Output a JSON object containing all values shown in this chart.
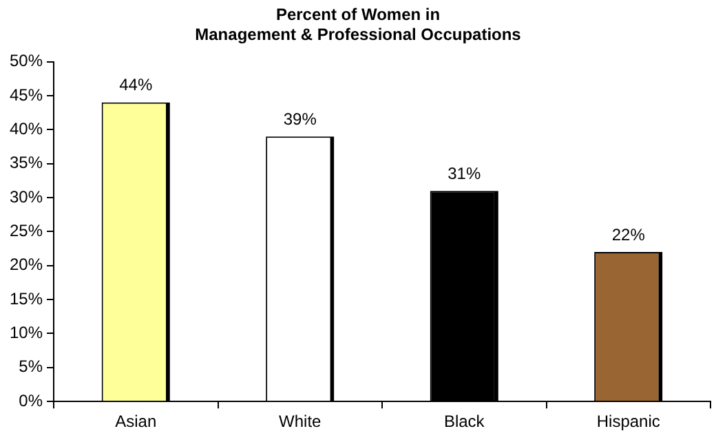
{
  "chart_data": {
    "type": "bar",
    "title": "Percent of Women in\nManagement & Professional Occupations",
    "categories": [
      "Asian",
      "White",
      "Black",
      "Hispanic"
    ],
    "values": [
      44,
      39,
      31,
      22
    ],
    "colors": [
      "#ffff99",
      "#ffffff",
      "#000000",
      "#996633"
    ],
    "value_labels": [
      "44%",
      "39%",
      "31%",
      "22%"
    ],
    "ylim": [
      0,
      50
    ],
    "yticks": [
      {
        "value": 0,
        "label": "0%"
      },
      {
        "value": 5,
        "label": "5%"
      },
      {
        "value": 10,
        "label": "10%"
      },
      {
        "value": 15,
        "label": "15%"
      },
      {
        "value": 20,
        "label": "20%"
      },
      {
        "value": 25,
        "label": "25%"
      },
      {
        "value": 30,
        "label": "30%"
      },
      {
        "value": 35,
        "label": "35%"
      },
      {
        "value": 40,
        "label": "40%"
      },
      {
        "value": 45,
        "label": "45%"
      },
      {
        "value": 50,
        "label": "50%"
      }
    ],
    "grid": false,
    "legend": false
  }
}
